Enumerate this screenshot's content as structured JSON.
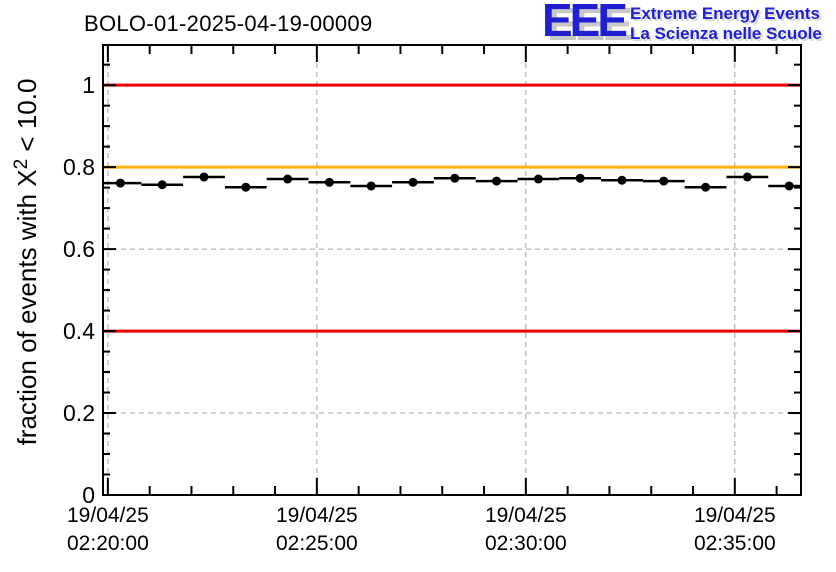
{
  "header": {
    "title": "BOLO-01-2025-04-19-00009"
  },
  "logo": {
    "acronym": "EEE",
    "tagline1": "Extreme Energy Events",
    "tagline2": "La Scienza nelle Scuole",
    "text_color": "#2020d0",
    "shadow_color": "#c8c8c8"
  },
  "chart_data": {
    "type": "line",
    "title": "BOLO-01-2025-04-19-00009",
    "ylabel": "fraction of events with X² < 10.0",
    "ylabel_parts": {
      "prefix": "fraction of events with X",
      "sup": "2",
      "suffix": " < 10.0"
    },
    "xlabel": "",
    "ylim": [
      0,
      1.098
    ],
    "yticks": [
      0,
      0.2,
      0.4,
      0.6,
      0.8,
      1.0
    ],
    "ytick_labels": [
      "0",
      "0.2",
      "0.4",
      "0.6",
      "0.8",
      "1"
    ],
    "y_minor_step": 0.05,
    "x_axis": {
      "kind": "datetime",
      "date_label": "19/04/25",
      "xlim": [
        "02:19:53",
        "02:36:35"
      ],
      "major_ticks": [
        {
          "date": "19/04/25",
          "time": "02:20:00"
        },
        {
          "date": "19/04/25",
          "time": "02:25:00"
        },
        {
          "date": "19/04/25",
          "time": "02:30:00"
        },
        {
          "date": "19/04/25",
          "time": "02:35:00"
        }
      ],
      "minor_step_seconds": 60
    },
    "grid": {
      "show": true,
      "color": "#a3a3a3",
      "dash": "5 4"
    },
    "reference_lines": [
      {
        "y": 1.0,
        "color": "#ee0000",
        "name": "upper-limit-line"
      },
      {
        "y": 0.8,
        "color": "#ffb300",
        "name": "warning-threshold-line"
      },
      {
        "y": 0.4,
        "color": "#ee0000",
        "name": "lower-limit-line"
      }
    ],
    "series": [
      {
        "name": "chi2-fraction",
        "color": "#000000",
        "marker": "filled-circle",
        "x_halfwidth_seconds": 30,
        "points": [
          {
            "time": "02:20:18",
            "value": 0.761
          },
          {
            "time": "02:21:18",
            "value": 0.757
          },
          {
            "time": "02:22:18",
            "value": 0.776
          },
          {
            "time": "02:23:18",
            "value": 0.751
          },
          {
            "time": "02:24:18",
            "value": 0.771
          },
          {
            "time": "02:25:18",
            "value": 0.763
          },
          {
            "time": "02:26:18",
            "value": 0.754
          },
          {
            "time": "02:27:18",
            "value": 0.763
          },
          {
            "time": "02:28:18",
            "value": 0.773
          },
          {
            "time": "02:29:18",
            "value": 0.766
          },
          {
            "time": "02:30:18",
            "value": 0.771
          },
          {
            "time": "02:31:18",
            "value": 0.773
          },
          {
            "time": "02:32:18",
            "value": 0.768
          },
          {
            "time": "02:33:18",
            "value": 0.766
          },
          {
            "time": "02:34:18",
            "value": 0.751
          },
          {
            "time": "02:35:18",
            "value": 0.776
          },
          {
            "time": "02:36:18",
            "value": 0.754
          }
        ]
      }
    ]
  }
}
